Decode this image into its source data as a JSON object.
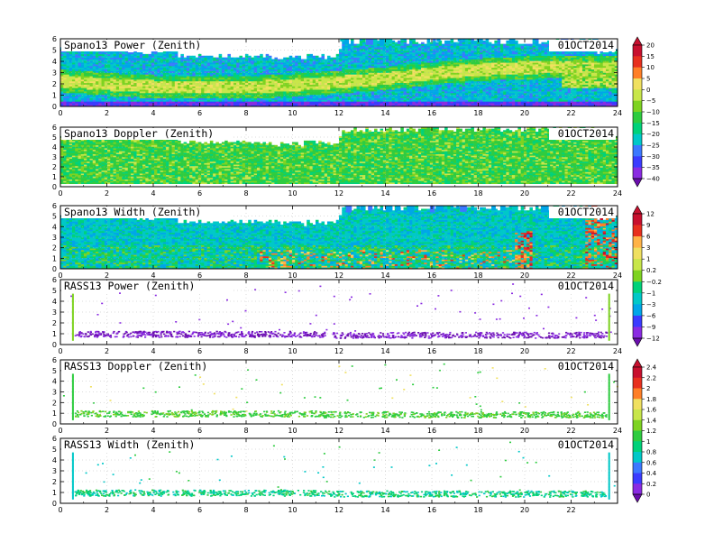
{
  "figure": {
    "x_ticks": [
      "0",
      "2",
      "4",
      "6",
      "8",
      "10",
      "12",
      "14",
      "16",
      "18",
      "20",
      "22",
      "24"
    ],
    "y_ticks": [
      "0",
      "1",
      "2",
      "3",
      "4",
      "5",
      "6"
    ],
    "bottom_x_ticks": [
      "0",
      "2",
      "4",
      "6",
      "8",
      "10",
      "12",
      "14",
      "16",
      "18",
      "20",
      "22"
    ]
  },
  "colorbars": [
    {
      "labels": [
        "20",
        "15",
        "10",
        "5",
        "0",
        "−5",
        "−10",
        "−15",
        "−20",
        "−25",
        "−30",
        "−35",
        "−40"
      ]
    },
    {
      "labels": [
        "12",
        "9",
        "6",
        "3",
        "1",
        "0.2",
        "−0.2",
        "−1",
        "−3",
        "−6",
        "−9",
        "−12"
      ]
    },
    {
      "labels": [
        "2.4",
        "2.2",
        "2",
        "1.8",
        "1.6",
        "1.4",
        "1.2",
        "1",
        "0.8",
        "0.6",
        "0.4",
        "0.2",
        "0"
      ]
    }
  ],
  "palette": [
    "#6a0dad",
    "#8a2be2",
    "#3b3bff",
    "#3c78ff",
    "#00a6e8",
    "#00c8c8",
    "#00d27a",
    "#2ecc40",
    "#7ed321",
    "#c8e64a",
    "#f0e060",
    "#ffb347",
    "#ff7f27",
    "#e8301e",
    "#c8102e"
  ],
  "chart_data": [
    {
      "type": "heatmap",
      "title": "Spano13 Power (Zenith)",
      "date": "01OCT2014",
      "x_range": [
        0,
        24
      ],
      "y_range": [
        0,
        6
      ],
      "mode": "power_spano"
    },
    {
      "type": "heatmap",
      "title": "Spano13 Doppler (Zenith)",
      "date": "01OCT2014",
      "x_range": [
        0,
        24
      ],
      "y_range": [
        0,
        6
      ],
      "mode": "doppler_spano"
    },
    {
      "type": "heatmap",
      "title": "Spano13 Width (Zenith)",
      "date": "01OCT2014",
      "x_range": [
        0,
        24
      ],
      "y_range": [
        0,
        6
      ],
      "mode": "width_spano"
    },
    {
      "type": "scatter",
      "title": "RASS13 Power (Zenith)",
      "date": "01OCT2014",
      "x_range": [
        0,
        24
      ],
      "y_range": [
        0,
        6
      ],
      "mode": "power_rass"
    },
    {
      "type": "scatter",
      "title": "RASS13 Doppler (Zenith)",
      "date": "01OCT2014",
      "x_range": [
        0,
        24
      ],
      "y_range": [
        0,
        6
      ],
      "mode": "doppler_rass"
    },
    {
      "type": "scatter",
      "title": "RASS13 Width (Zenith)",
      "date": "01OCT2014",
      "x_range": [
        0,
        24
      ],
      "y_range": [
        0,
        6
      ],
      "mode": "width_rass"
    }
  ]
}
